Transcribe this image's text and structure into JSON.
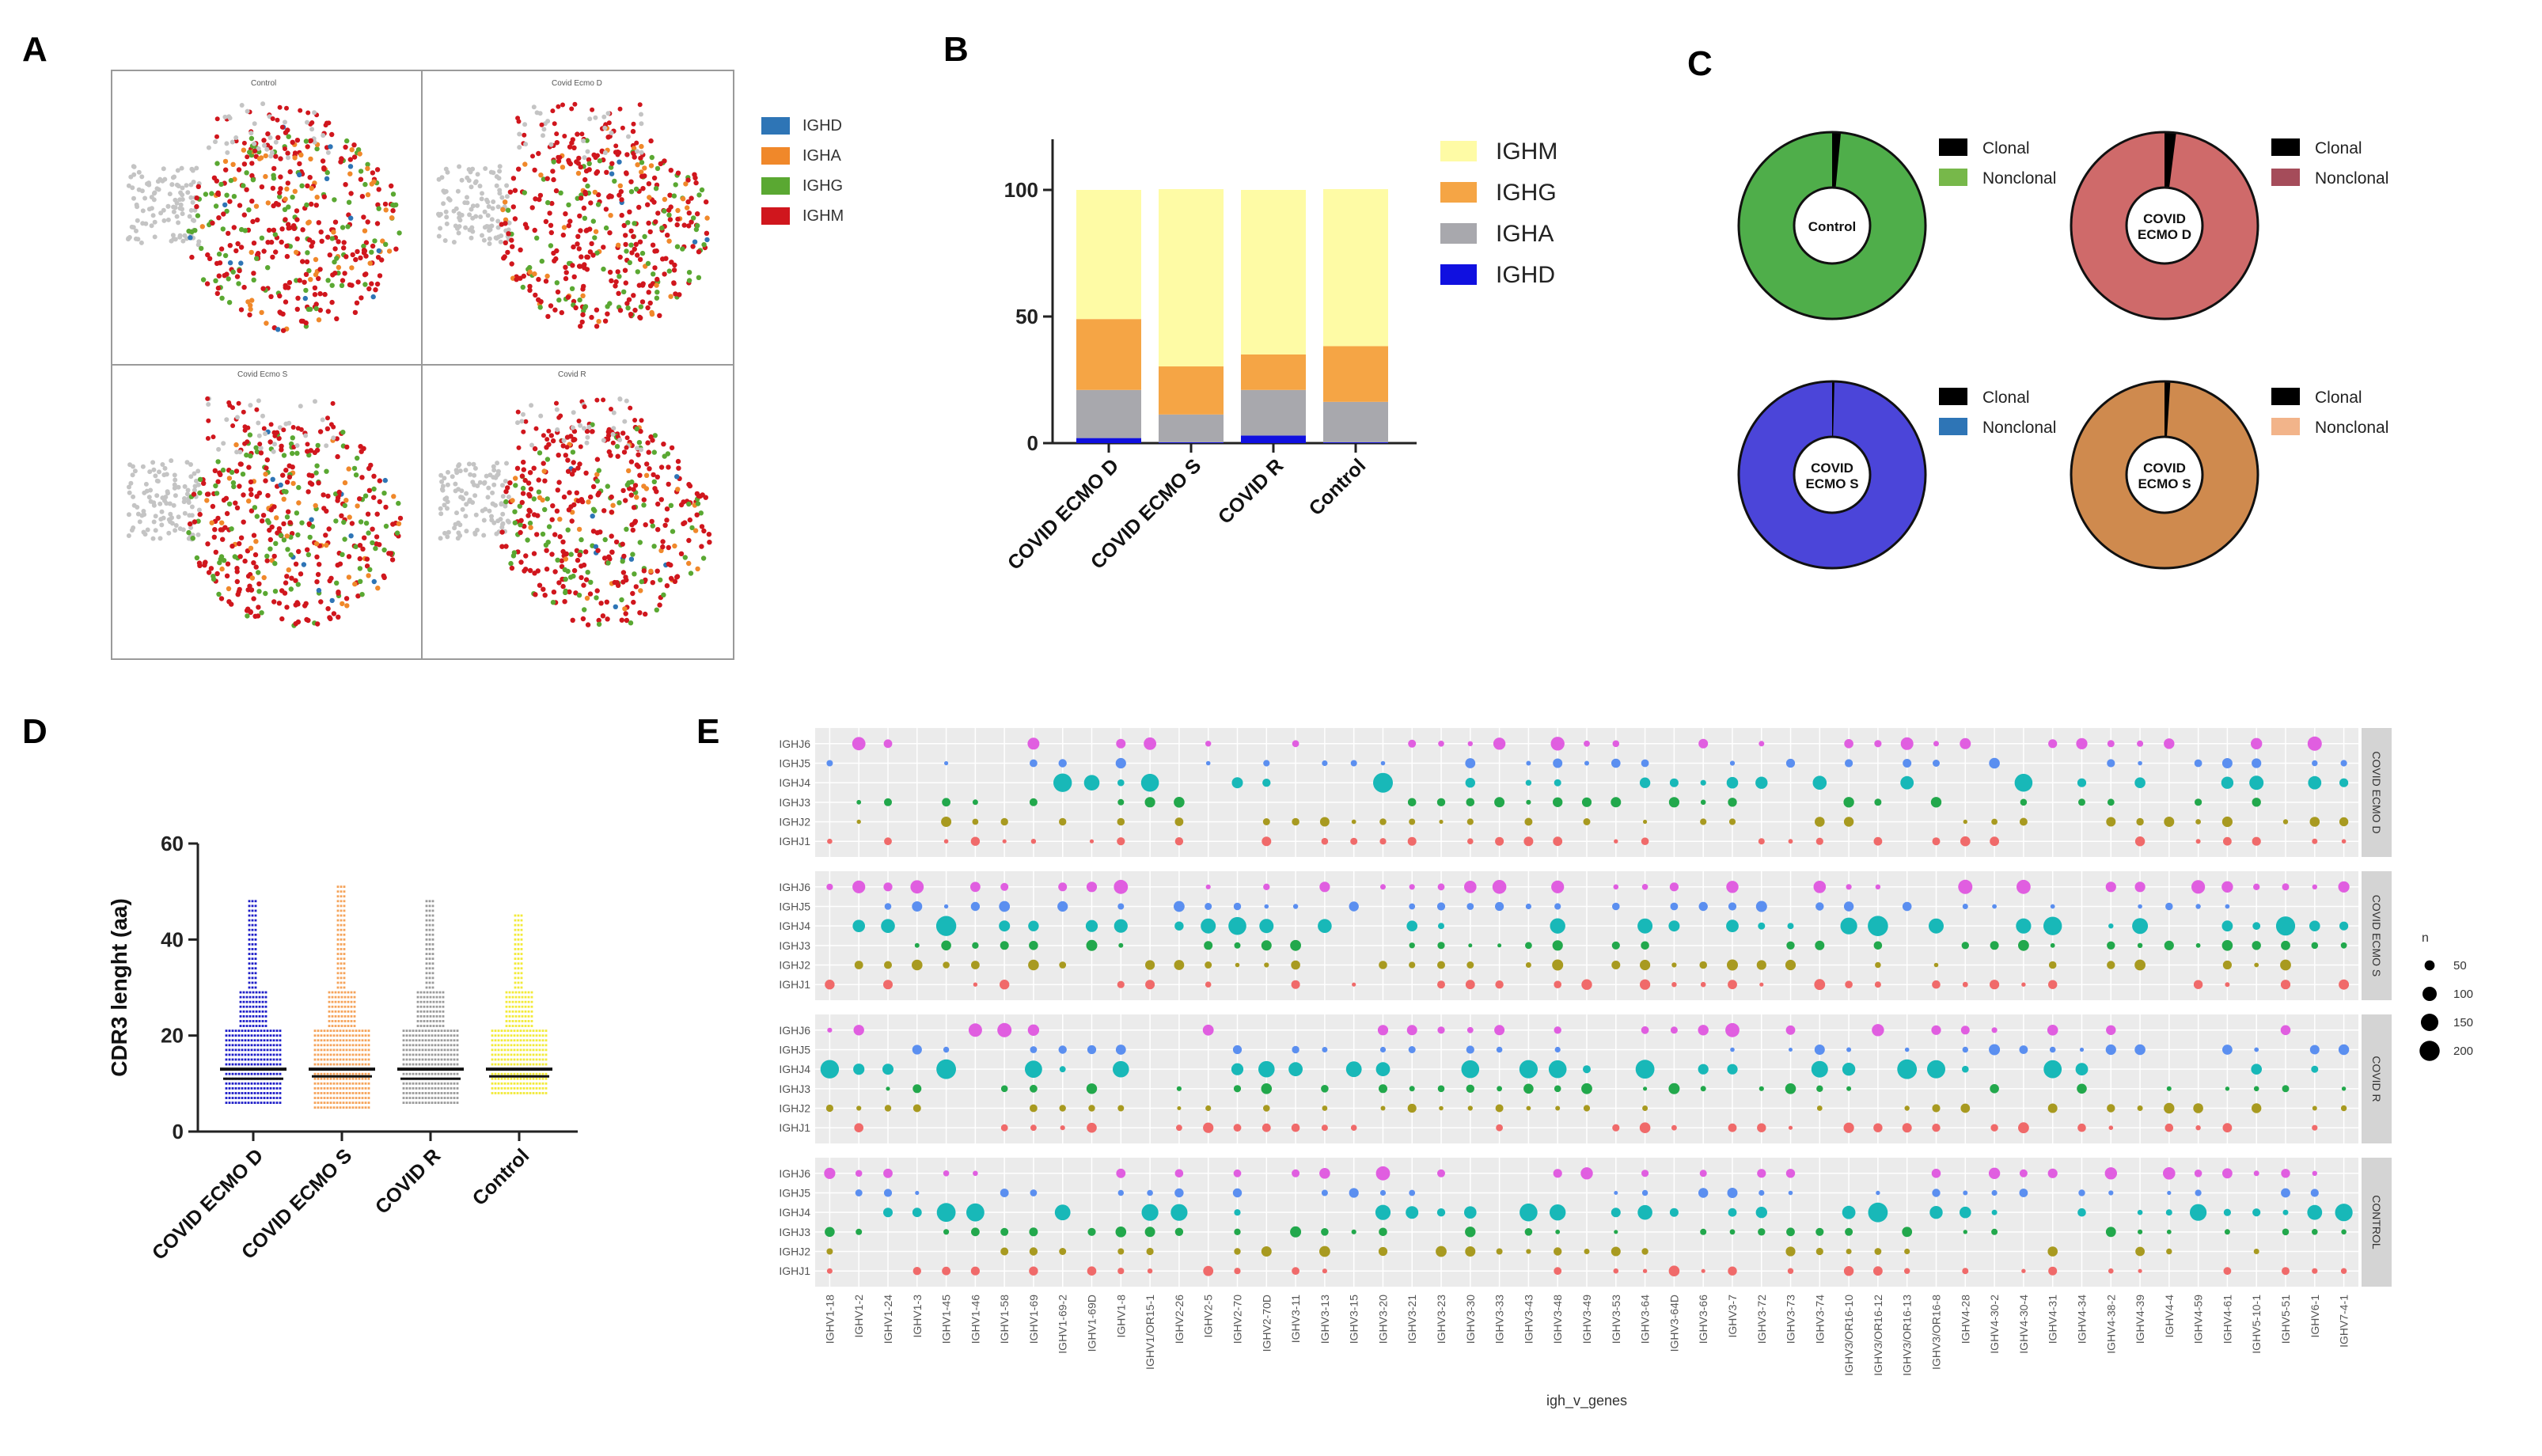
{
  "panel_labels": {
    "a": "A",
    "b": "B",
    "c": "C",
    "d": "D",
    "e": "E"
  },
  "panel_a": {
    "subplot_titles": [
      "Control",
      "Covid Ecmo D",
      "Covid Ecmo S",
      "Covid R"
    ],
    "legend": [
      {
        "label": "IGHD",
        "color": "#2e75b6"
      },
      {
        "label": "IGHA",
        "color": "#f0882a"
      },
      {
        "label": "IGHG",
        "color": "#5aa832"
      },
      {
        "label": "IGHM",
        "color": "#d0161d"
      }
    ]
  },
  "panel_c": {
    "donuts": [
      {
        "center": "Control",
        "color": "#4fae4a",
        "clonal_fraction": 0.015,
        "legend": [
          "Clonal",
          "Nonclonal"
        ],
        "legend_colors": [
          "#000000",
          "#77b84a"
        ]
      },
      {
        "center": "COVID ECMO D",
        "color": "#cf6a6a",
        "clonal_fraction": 0.02,
        "legend": [
          "Clonal",
          "Nonclonal"
        ],
        "legend_colors": [
          "#000000",
          "#a54c5a"
        ]
      },
      {
        "center": "COVID ECMO S",
        "color": "#4b45d9",
        "clonal_fraction": 0.004,
        "legend": [
          "Clonal",
          "Nonclonal"
        ],
        "legend_colors": [
          "#000000",
          "#2e75b6"
        ]
      },
      {
        "center": "COVID ECMO S",
        "color": "#cf8a4e",
        "clonal_fraction": 0.01,
        "legend": [
          "Clonal",
          "Nonclonal"
        ],
        "legend_colors": [
          "#000000",
          "#f2b48a"
        ]
      }
    ]
  },
  "chart_data": [
    {
      "type": "bar",
      "panel": "B",
      "stacked": true,
      "categories": [
        "COVID ECMO D",
        "COVID ECMO S",
        "COVID R",
        "Control"
      ],
      "series": [
        {
          "name": "IGHD",
          "color": "#1010e0",
          "values": [
            2,
            0.3,
            3,
            0.3
          ]
        },
        {
          "name": "IGHA",
          "color": "#a8a8ad",
          "values": [
            19,
            11,
            18,
            16
          ]
        },
        {
          "name": "IGHG",
          "color": "#f5a545",
          "values": [
            28,
            19,
            14,
            22
          ]
        },
        {
          "name": "IGHM",
          "color": "#fefba5",
          "values": [
            51,
            70,
            65,
            62
          ]
        }
      ],
      "ylim": [
        0,
        120
      ],
      "yticks": [
        0,
        50,
        100
      ],
      "legend_order": [
        "IGHM",
        "IGHG",
        "IGHA",
        "IGHD"
      ]
    },
    {
      "type": "scatter",
      "panel": "D",
      "ylabel": "CDR3 lenght (aa)",
      "ylim": [
        0,
        60
      ],
      "yticks": [
        0,
        20,
        40,
        60
      ],
      "categories": [
        "COVID ECMO D",
        "COVID ECMO S",
        "COVID R",
        "Control"
      ],
      "colors": [
        "#1d1dc8",
        "#f5a35a",
        "#9a9a9a",
        "#f2ea38"
      ],
      "max": [
        48,
        51,
        48,
        45
      ],
      "min": [
        6,
        5,
        6,
        8
      ],
      "mean": [
        13,
        13,
        13,
        13
      ],
      "median": [
        11,
        11.5,
        11,
        11.5
      ]
    },
    {
      "type": "scatter",
      "panel": "E",
      "xlabel": "igh_v_genes",
      "facets": [
        "COVID ECMO D",
        "COVID ECMO S",
        "COVID R",
        "CONTROL"
      ],
      "facet_labels": [
        "COVID ECMO D",
        "COVID ECMO S",
        "COVID R",
        "CONTROL"
      ],
      "y_genes": [
        "IGHJ6",
        "IGHJ5",
        "IGHJ4",
        "IGHJ3",
        "IGHJ2",
        "IGHJ1"
      ],
      "y_colors": [
        "#e05ee0",
        "#5b8ff0",
        "#18b8b8",
        "#22a84c",
        "#a89a20",
        "#f06a6a"
      ],
      "v_genes": [
        "IGHV1-18",
        "IGHV1-2",
        "IGHV1-24",
        "IGHV1-3",
        "IGHV1-45",
        "IGHV1-46",
        "IGHV1-58",
        "IGHV1-69",
        "IGHV1-69-2",
        "IGHV1-69D",
        "IGHV1-8",
        "IGHV1/OR15-1",
        "IGHV2-26",
        "IGHV2-5",
        "IGHV2-70",
        "IGHV2-70D",
        "IGHV3-11",
        "IGHV3-13",
        "IGHV3-15",
        "IGHV3-20",
        "IGHV3-21",
        "IGHV3-23",
        "IGHV3-30",
        "IGHV3-33",
        "IGHV3-43",
        "IGHV3-48",
        "IGHV3-49",
        "IGHV3-53",
        "IGHV3-64",
        "IGHV3-64D",
        "IGHV3-66",
        "IGHV3-7",
        "IGHV3-72",
        "IGHV3-73",
        "IGHV3-74",
        "IGHV3/OR16-10",
        "IGHV3/OR16-12",
        "IGHV3/OR16-13",
        "IGHV3/OR16-8",
        "IGHV4-28",
        "IGHV4-30-2",
        "IGHV4-30-4",
        "IGHV4-31",
        "IGHV4-34",
        "IGHV4-38-2",
        "IGHV4-39",
        "IGHV4-4",
        "IGHV4-59",
        "IGHV4-61",
        "IGHV5-10-1",
        "IGHV5-51",
        "IGHV6-1",
        "IGHV7-4-1"
      ],
      "size_legend": {
        "title": "n",
        "values": [
          50,
          100,
          150,
          200
        ]
      }
    }
  ]
}
